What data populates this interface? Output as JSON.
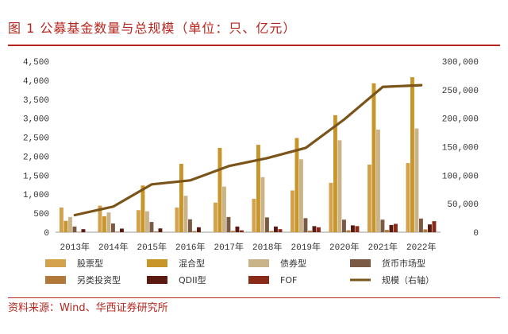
{
  "header": {
    "title": "图 1  公募基金数量与总规模（单位：只、亿元）"
  },
  "footer": {
    "source": "资料来源：Wind、华西证券研究所"
  },
  "chart_data": {
    "type": "bar",
    "categories": [
      "2013年",
      "2014年",
      "2015年",
      "2016年",
      "2017年",
      "2018年",
      "2019年",
      "2020年",
      "2021年",
      "2022年"
    ],
    "y_left": {
      "lim": [
        0,
        4500
      ],
      "ticks": [
        "0",
        "500",
        "1,000",
        "1,500",
        "2,000",
        "2,500",
        "3,000",
        "3,500",
        "4,000",
        "4,500"
      ]
    },
    "y_right": {
      "lim": [
        0,
        300000
      ],
      "ticks": [
        "0",
        "50,000",
        "100,000",
        "150,000",
        "200,000",
        "250,000",
        "300,000"
      ]
    },
    "series": [
      {
        "name": "股票型",
        "color": "#d4a24c",
        "values": [
          650,
          700,
          580,
          650,
          780,
          880,
          1100,
          1300,
          1780,
          1820
        ]
      },
      {
        "name": "混合型",
        "color": "#c8952a",
        "values": [
          300,
          420,
          1230,
          1800,
          2220,
          2300,
          2480,
          3080,
          3920,
          4080
        ]
      },
      {
        "name": "债券型",
        "color": "#c9b48a",
        "values": [
          400,
          520,
          550,
          960,
          1200,
          1450,
          1920,
          2420,
          2700,
          2730
        ]
      },
      {
        "name": "货币市场型",
        "color": "#7a5a44",
        "values": [
          150,
          230,
          270,
          340,
          400,
          390,
          370,
          330,
          330,
          360
        ]
      },
      {
        "name": "另类投资型",
        "color": "#b0793a",
        "values": [
          10,
          15,
          20,
          30,
          35,
          30,
          40,
          50,
          60,
          75
        ]
      },
      {
        "name": "QDII型",
        "color": "#5a1a10",
        "values": [
          80,
          95,
          100,
          130,
          150,
          150,
          160,
          180,
          190,
          205
        ]
      },
      {
        "name": "FOF",
        "color": "#8a2a18",
        "values": [
          0,
          0,
          0,
          0,
          50,
          80,
          130,
          160,
          220,
          290
        ]
      },
      {
        "name": "规模（右轴）",
        "color": "#7a5418",
        "type": "line",
        "axis": "right",
        "values": [
          30000,
          45000,
          84000,
          91000,
          116000,
          130000,
          148000,
          198000,
          255000,
          258000
        ]
      }
    ]
  }
}
